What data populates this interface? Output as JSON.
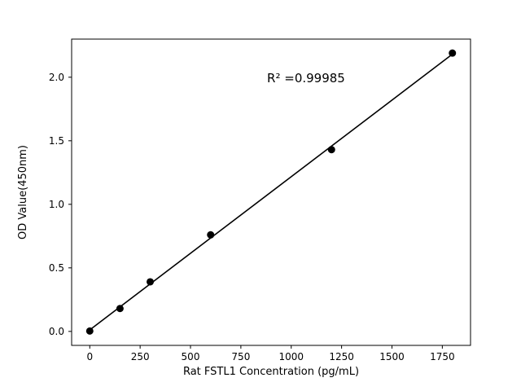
{
  "chart_data": {
    "type": "scatter",
    "title": "",
    "xlabel": "Rat FSTL1 Concentration (pg/mL)",
    "ylabel": "OD Value(450nm)",
    "points": {
      "x": [
        0,
        150,
        300,
        600,
        1200,
        1800
      ],
      "y": [
        0.003,
        0.18,
        0.39,
        0.76,
        1.43,
        2.19
      ]
    },
    "fit_line": true,
    "annotation": {
      "text": "R² =0.99985",
      "x": 880,
      "y": 1.96,
      "anchor": "start"
    },
    "xlim": [
      -90,
      1890
    ],
    "ylim": [
      -0.11,
      2.3
    ],
    "xticks": [
      0,
      250,
      500,
      750,
      1000,
      1250,
      1500,
      1750
    ],
    "xticklabels": [
      "0",
      "250",
      "500",
      "750",
      "1000",
      "1250",
      "1500",
      "1750"
    ],
    "yticks": [
      0.0,
      0.5,
      1.0,
      1.5,
      2.0
    ],
    "yticklabels": [
      "0.0",
      "0.5",
      "1.0",
      "1.5",
      "2.0"
    ],
    "grid": false,
    "legend": null,
    "marker_color": "#000000",
    "line_color": "#000000",
    "axis_color": "#000000",
    "background": "#ffffff"
  }
}
